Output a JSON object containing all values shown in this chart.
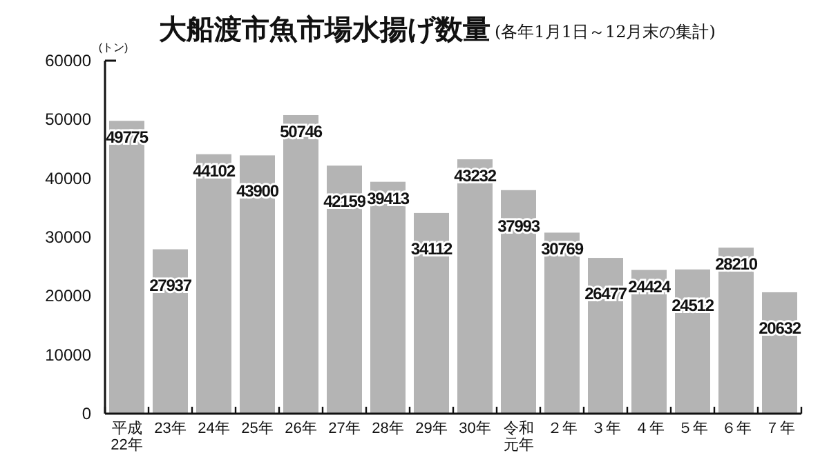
{
  "chart_data": {
    "type": "bar",
    "title": "大船渡市魚市場水揚げ数量",
    "subtitle": "(各年1月1日～12月末の集計)",
    "ylabel": "(トン)",
    "categories": [
      "平成22年",
      "23年",
      "24年",
      "25年",
      "26年",
      "27年",
      "28年",
      "29年",
      "30年",
      "令和元年",
      "２年",
      "３年",
      "４年",
      "５年",
      "６年",
      "７年"
    ],
    "values": [
      49775,
      27937,
      44102,
      43900,
      50746,
      42159,
      39413,
      34112,
      43232,
      37993,
      30769,
      26477,
      24424,
      24512,
      28210,
      20632
    ],
    "color": "#b4b4b4",
    "ylim": [
      0,
      60000
    ],
    "yticks": [
      0,
      10000,
      20000,
      30000,
      40000,
      50000,
      60000
    ],
    "data_labels": true,
    "grid": false
  }
}
